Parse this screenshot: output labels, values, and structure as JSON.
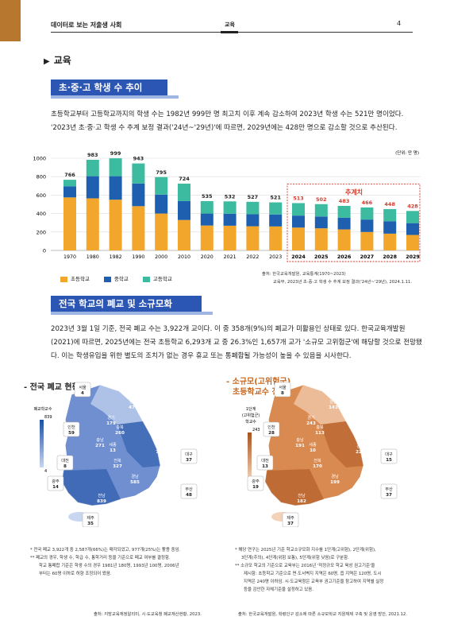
{
  "header": {
    "title": "데이터로 보는 저출생 사회",
    "section": "교육",
    "page": "4"
  },
  "section_title": "교육",
  "banner1": "초·중·고 학생 수 추이",
  "para1": "초등학교부터 고등학교까지의 학생 수는 1982년 999만 명 최고치 이후 계속 감소하여 2023년 학생 수는 521만 명이었다. '2023년 초·중·고 학생 수 추계 보정 결과('24년~'29년)'에 따르면, 2029년에는 428만 명으로 감소할 것으로 추산된다.",
  "chart_data": {
    "type": "bar",
    "stacked": true,
    "unit": "(단위: 만 명)",
    "categories": [
      "1970",
      "1980",
      "1982",
      "1990",
      "2000",
      "2010",
      "2020",
      "2021",
      "2022",
      "2023",
      "2024",
      "2025",
      "2026",
      "2027",
      "2028",
      "2029"
    ],
    "totals": [
      766,
      983,
      999,
      943,
      795,
      724,
      535,
      532,
      527,
      521,
      513,
      502,
      483,
      466,
      448,
      428
    ],
    "series": [
      {
        "name": "초등학교",
        "color": "#f2a62b",
        "values": [
          575,
          565,
          550,
          480,
          400,
          330,
          270,
          268,
          262,
          260,
          248,
          240,
          228,
          200,
          182,
          168
        ]
      },
      {
        "name": "중학교",
        "color": "#1f5fb0",
        "values": [
          120,
          240,
          255,
          245,
          205,
          205,
          130,
          130,
          130,
          130,
          130,
          128,
          126,
          135,
          135,
          128
        ]
      },
      {
        "name": "고등학교",
        "color": "#3dbba1",
        "values": [
          71,
          178,
          194,
          218,
          190,
          189,
          135,
          134,
          135,
          131,
          135,
          134,
          129,
          131,
          131,
          132
        ]
      }
    ],
    "ylim": [
      0,
      1000
    ],
    "yticks": [
      0,
      200,
      400,
      600,
      800,
      1000
    ],
    "projection_label": "추계치",
    "projection_start": "2024"
  },
  "source1": [
    "출처: 한국교육개발원, 교육통계(1970~2023)",
    "교육부, 2023년 초·중·고 학생 수 추계 보정 결과('24년~'29년), 2024.1.11."
  ],
  "banner2": "전국 학교의 폐교 및 소규모화",
  "para2": "2023년 3월 1일 기준, 전국 폐교 수는 3,922개 교이다. 이 중 358개(9%)의 폐교가 미활용인 상태로 있다. 한국교육개발원(2021)에 따르면, 2025년에는 전국 초등학교 6,293개 교 중 26.3%인 1,657개 교가 '소규모 고위험군'에 해당할 것으로 전망됐다. 이는 학생유입을 위한 별도의 조치가 없는 경우 휴교 또는 통폐합될 가능성이 높을 수 있음을 시사한다.",
  "map1": {
    "heading": "- 전국 폐교 현황",
    "legend_title": "폐교학교수",
    "legend_max": "839",
    "legend_min": "4",
    "regions": [
      {
        "name": "서울",
        "value": "4"
      },
      {
        "name": "강원",
        "value": "479"
      },
      {
        "name": "경기",
        "value": "179"
      },
      {
        "name": "인천",
        "value": "59"
      },
      {
        "name": "충북",
        "value": "260"
      },
      {
        "name": "충남",
        "value": "271"
      },
      {
        "name": "세종",
        "value": "13"
      },
      {
        "name": "경북",
        "value": "737"
      },
      {
        "name": "대전",
        "value": "8"
      },
      {
        "name": "전북",
        "value": "327"
      },
      {
        "name": "대구",
        "value": "37"
      },
      {
        "name": "울산",
        "value": "29"
      },
      {
        "name": "경남",
        "value": "585"
      },
      {
        "name": "광주",
        "value": "14"
      },
      {
        "name": "부산",
        "value": "48"
      },
      {
        "name": "전남",
        "value": "839"
      },
      {
        "name": "제주",
        "value": "35"
      }
    ]
  },
  "map2": {
    "heading": [
      "- 소규모(고위험군)",
      "초등학교수 전망"
    ],
    "legend_title": [
      "1단계",
      "(고위험군)",
      "학교수"
    ],
    "legend_max": "243",
    "legend_min": "8",
    "regions": [
      {
        "name": "서울",
        "value": "8"
      },
      {
        "name": "강원",
        "value": "141"
      },
      {
        "name": "경기",
        "value": "243"
      },
      {
        "name": "인천",
        "value": "28"
      },
      {
        "name": "충북",
        "value": "113"
      },
      {
        "name": "충남",
        "value": "191"
      },
      {
        "name": "세종",
        "value": "10"
      },
      {
        "name": "경북",
        "value": "229"
      },
      {
        "name": "대전",
        "value": "13"
      },
      {
        "name": "전북",
        "value": "170"
      },
      {
        "name": "대구",
        "value": "15"
      },
      {
        "name": "울산",
        "value": "17"
      },
      {
        "name": "경남",
        "value": "199"
      },
      {
        "name": "광주",
        "value": "19"
      },
      {
        "name": "부산",
        "value": "37"
      },
      {
        "name": "전남",
        "value": "182"
      },
      {
        "name": "제주",
        "value": "37"
      }
    ]
  },
  "notes1": [
    "* 전국 폐교 3,922개 중 2,587개(66%)는 매각되었고, 977개(25%)는 활용 중임.",
    "** 폐교의 경우, 학생 수, 학급 수, 통학거리 등을 기준으로 폐교 여부를 결정함.",
    "학교 통폐합 기준은 학생 수의 경우 1981년 180명, 1993년 100명, 2006년",
    "부터는 60명 이하로 하향 조정되어 왔음."
  ],
  "notes2": [
    "* 해당 연구는 2025년 기준 학교소규모화 지수를 1단계(고위험), 2단계(위험),",
    "3단계(주의), 4단계(위험 보통), 5단계(위험 낮음)로 구분함.",
    "** 소규모 학교의 기준으로 교육부는 2016년 '적정규모 학교 육성 권고기준'을",
    "제시함: 초등학교 기준으로 면·도서벽지 지역은 60명, 읍 지역은 120명, 도시",
    "지역은 240명 이하임. 시·도교육청은 교육부 권고기준을 참고하여 지역별 실정",
    "등을 감안한 자체기준을 설정하고 있음."
  ],
  "source_map1": "출처: 지방교육재정알리미, 시·도교육청 폐교재산현황, 2023.",
  "source_map2": "출처: 한국교육개발원, 학령인구 감소에 따른 소규모학교 지원체제 구축 및 운영 방안, 2021.12."
}
